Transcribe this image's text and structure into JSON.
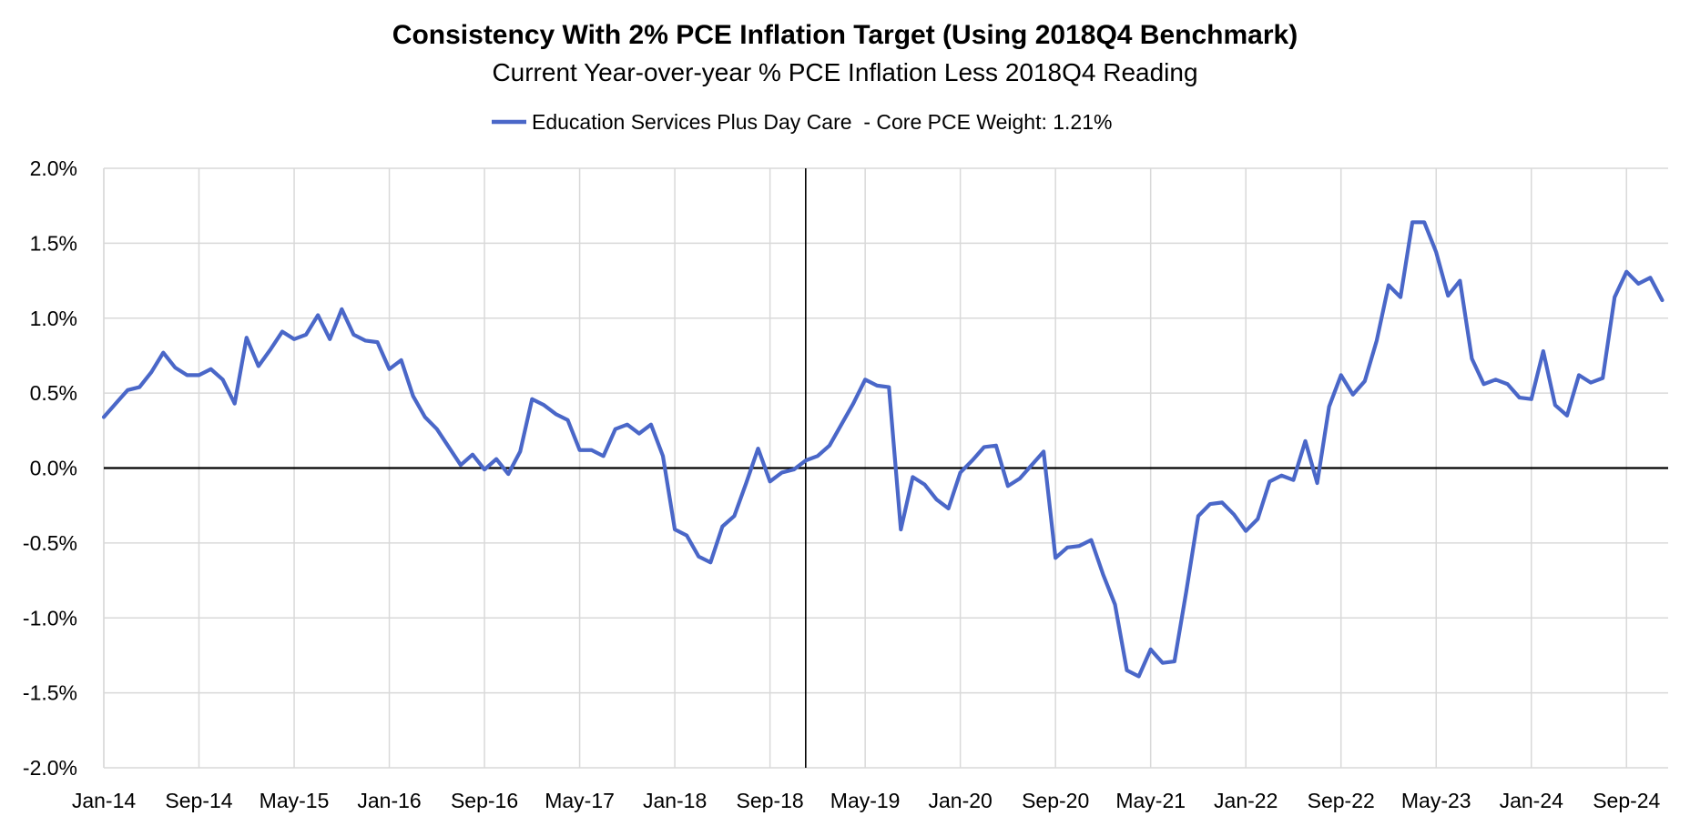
{
  "chart_data": {
    "type": "line",
    "title": "Consistency With 2% PCE Inflation Target (Using 2018Q4 Benchmark)",
    "subtitle": "Current Year-over-year % PCE Inflation Less 2018Q4 Reading",
    "xlabel": "",
    "ylabel": "",
    "ylim": [
      -2.0,
      2.0
    ],
    "y_ticks": [
      2.0,
      1.5,
      1.0,
      0.5,
      0.0,
      -0.5,
      -1.0,
      -1.5,
      -2.0
    ],
    "y_tick_labels": [
      "2.0%",
      "1.5%",
      "1.0%",
      "0.5%",
      "0.0%",
      "-0.5%",
      "-1.0%",
      "-1.5%",
      "-2.0%"
    ],
    "x_tick_labels": [
      "Jan-14",
      "Sep-14",
      "May-15",
      "Jan-16",
      "Sep-16",
      "May-17",
      "Jan-18",
      "Sep-18",
      "May-19",
      "Jan-20",
      "Sep-20",
      "May-21",
      "Jan-22",
      "Sep-22",
      "May-23",
      "Jan-24",
      "Sep-24"
    ],
    "x_tick_spacing_months": 8,
    "start_month": "Jan-14",
    "reference_line_month": "Dec-18",
    "grid": true,
    "legend_position": "top-center",
    "series": [
      {
        "name": "Education Services Plus Day Care  - Core PCE Weight: 1.21%",
        "color": "#4A67C8",
        "values": [
          0.34,
          0.43,
          0.52,
          0.54,
          0.64,
          0.77,
          0.67,
          0.62,
          0.62,
          0.66,
          0.59,
          0.43,
          0.87,
          0.68,
          0.79,
          0.91,
          0.86,
          0.89,
          1.02,
          0.86,
          1.06,
          0.89,
          0.85,
          0.84,
          0.66,
          0.72,
          0.48,
          0.34,
          0.26,
          0.14,
          0.02,
          0.09,
          -0.01,
          0.06,
          -0.04,
          0.11,
          0.46,
          0.42,
          0.36,
          0.32,
          0.12,
          0.12,
          0.08,
          0.26,
          0.29,
          0.23,
          0.29,
          0.08,
          -0.41,
          -0.45,
          -0.59,
          -0.63,
          -0.39,
          -0.32,
          -0.1,
          0.13,
          -0.09,
          -0.03,
          -0.01,
          0.05,
          0.08,
          0.15,
          0.29,
          0.43,
          0.59,
          0.55,
          0.54,
          -0.41,
          -0.06,
          -0.11,
          -0.21,
          -0.27,
          -0.03,
          0.05,
          0.14,
          0.15,
          -0.12,
          -0.07,
          0.02,
          0.11,
          -0.6,
          -0.53,
          -0.52,
          -0.48,
          -0.71,
          -0.91,
          -1.35,
          -1.39,
          -1.21,
          -1.3,
          -1.29,
          -0.82,
          -0.32,
          -0.24,
          -0.23,
          -0.31,
          -0.42,
          -0.34,
          -0.09,
          -0.05,
          -0.08,
          0.18,
          -0.1,
          0.41,
          0.62,
          0.49,
          0.58,
          0.85,
          1.22,
          1.14,
          1.64,
          1.64,
          1.44,
          1.15,
          1.25,
          0.73,
          0.56,
          0.59,
          0.56,
          0.47,
          0.46,
          0.78,
          0.42,
          0.35,
          0.62,
          0.57,
          0.6,
          1.14,
          1.31,
          1.23,
          1.27,
          1.12
        ]
      }
    ]
  }
}
